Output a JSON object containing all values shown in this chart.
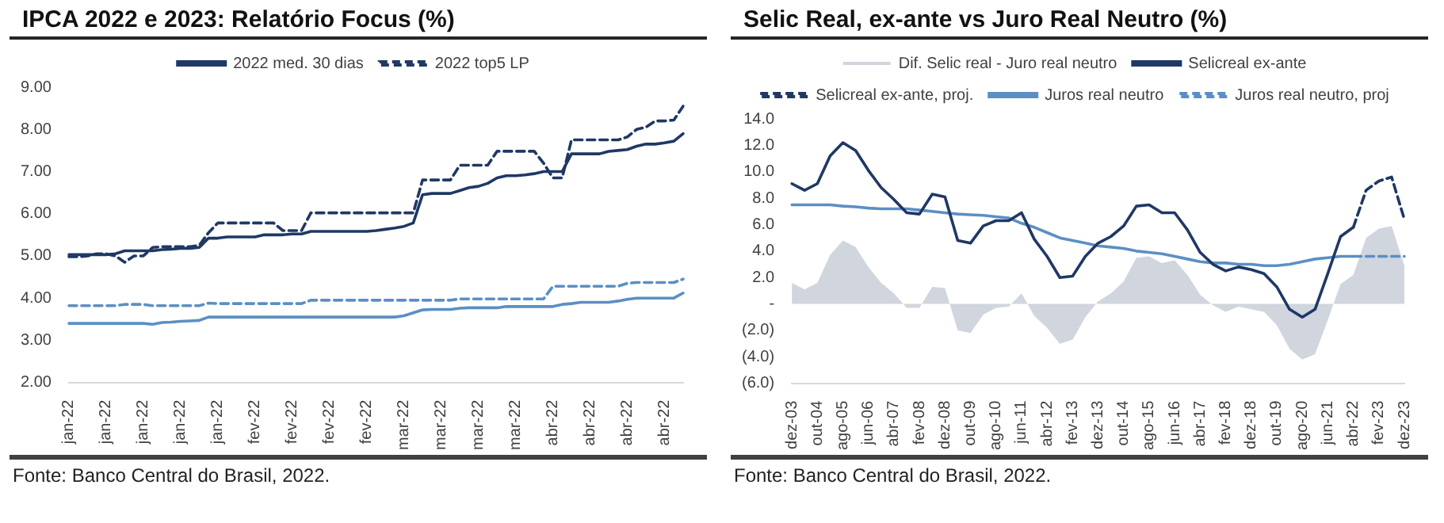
{
  "chart_data": [
    {
      "type": "line",
      "title": "IPCA 2022 e 2023: Relatório Focus (%)",
      "annotations": [
        "Fonte: Banco Central do Brasil, 2022."
      ],
      "categories": [
        "jan-22",
        null,
        null,
        null,
        "jan-22",
        null,
        null,
        null,
        "jan-22",
        null,
        null,
        null,
        "jan-22",
        null,
        null,
        null,
        "jan-22",
        null,
        null,
        null,
        "fev-22",
        null,
        null,
        null,
        "fev-22",
        null,
        null,
        null,
        "fev-22",
        null,
        null,
        null,
        "fev-22",
        null,
        null,
        null,
        "mar-22",
        null,
        null,
        null,
        "mar-22",
        null,
        null,
        null,
        "mar-22",
        null,
        null,
        null,
        "mar-22",
        null,
        null,
        null,
        "abr-22",
        null,
        null,
        null,
        "abr-22",
        null,
        null,
        null,
        "abr-22",
        null,
        null,
        null,
        "abr-22",
        null,
        null
      ],
      "series": [
        {
          "name": "2022 med. 30 dias",
          "color": "#1f3864",
          "line_style": "solid",
          "values": [
            5.03,
            5.03,
            5.03,
            5.03,
            5.03,
            5.05,
            5.12,
            5.12,
            5.12,
            5.12,
            5.15,
            5.16,
            5.18,
            5.18,
            5.2,
            5.42,
            5.42,
            5.45,
            5.45,
            5.45,
            5.45,
            5.5,
            5.5,
            5.5,
            5.52,
            5.52,
            5.58,
            5.58,
            5.58,
            5.58,
            5.58,
            5.58,
            5.58,
            5.6,
            5.63,
            5.66,
            5.7,
            5.78,
            6.45,
            6.48,
            6.48,
            6.48,
            6.55,
            6.62,
            6.65,
            6.72,
            6.85,
            6.9,
            6.9,
            6.92,
            6.95,
            7.0,
            7.0,
            7.0,
            7.42,
            7.42,
            7.42,
            7.42,
            7.48,
            7.5,
            7.52,
            7.6,
            7.65,
            7.65,
            7.68,
            7.72,
            7.9
          ]
        },
        {
          "name": "2022 top5 LP",
          "color": "#1f3864",
          "line_style": "dashed",
          "values": [
            4.98,
            4.98,
            5.0,
            5.05,
            5.05,
            5.0,
            4.85,
            5.0,
            5.0,
            5.2,
            5.22,
            5.22,
            5.22,
            5.22,
            5.25,
            5.55,
            5.78,
            5.78,
            5.78,
            5.78,
            5.78,
            5.78,
            5.78,
            5.6,
            5.6,
            5.6,
            6.02,
            6.02,
            6.02,
            6.02,
            6.02,
            6.02,
            6.02,
            6.02,
            6.02,
            6.02,
            6.02,
            6.02,
            6.8,
            6.8,
            6.8,
            6.8,
            7.15,
            7.15,
            7.15,
            7.15,
            7.48,
            7.48,
            7.48,
            7.48,
            7.48,
            7.2,
            6.85,
            6.85,
            7.75,
            7.75,
            7.75,
            7.75,
            7.75,
            7.75,
            7.82,
            8.0,
            8.05,
            8.2,
            8.2,
            8.22,
            8.55
          ]
        },
        {
          "color": "#5b8fc4",
          "line_style": "solid",
          "values": [
            3.4,
            3.4,
            3.4,
            3.4,
            3.4,
            3.4,
            3.4,
            3.4,
            3.4,
            3.38,
            3.42,
            3.43,
            3.45,
            3.46,
            3.47,
            3.55,
            3.55,
            3.55,
            3.55,
            3.55,
            3.55,
            3.55,
            3.55,
            3.55,
            3.55,
            3.55,
            3.55,
            3.55,
            3.55,
            3.55,
            3.55,
            3.55,
            3.55,
            3.55,
            3.55,
            3.55,
            3.58,
            3.65,
            3.72,
            3.73,
            3.73,
            3.73,
            3.76,
            3.77,
            3.77,
            3.77,
            3.77,
            3.8,
            3.8,
            3.8,
            3.8,
            3.8,
            3.8,
            3.85,
            3.87,
            3.9,
            3.9,
            3.9,
            3.9,
            3.93,
            3.97,
            4.0,
            4.0,
            4.0,
            4.0,
            4.0,
            4.12
          ]
        },
        {
          "color": "#5b8fc4",
          "line_style": "dashed",
          "values": [
            3.82,
            3.82,
            3.82,
            3.82,
            3.82,
            3.82,
            3.85,
            3.85,
            3.85,
            3.82,
            3.82,
            3.82,
            3.82,
            3.82,
            3.82,
            3.88,
            3.87,
            3.87,
            3.87,
            3.87,
            3.87,
            3.87,
            3.87,
            3.87,
            3.87,
            3.87,
            3.95,
            3.95,
            3.95,
            3.95,
            3.95,
            3.95,
            3.95,
            3.95,
            3.95,
            3.95,
            3.95,
            3.95,
            3.95,
            3.95,
            3.95,
            3.95,
            3.98,
            3.98,
            3.98,
            3.98,
            3.98,
            3.98,
            3.98,
            3.98,
            3.98,
            3.98,
            4.28,
            4.28,
            4.28,
            4.28,
            4.28,
            4.28,
            4.28,
            4.28,
            4.35,
            4.37,
            4.37,
            4.37,
            4.37,
            4.37,
            4.45
          ]
        }
      ],
      "ylim": [
        2,
        9
      ],
      "yticks": [
        {
          "value": 2,
          "label": "2.00"
        },
        {
          "value": 3,
          "label": "3.00"
        },
        {
          "value": 4,
          "label": "4.00"
        },
        {
          "value": 5,
          "label": "5.00"
        },
        {
          "value": 6,
          "label": "6.00"
        },
        {
          "value": 7,
          "label": "7.00"
        },
        {
          "value": 8,
          "label": "8.00"
        },
        {
          "value": 9,
          "label": "9.00"
        }
      ],
      "legend": "top",
      "marker": "none"
    },
    {
      "type": "line",
      "title": "Selic Real, ex-ante vs Juro Real Neutro (%)",
      "annotations": [
        "Fonte: Banco Central do Brasil, 2022."
      ],
      "categories": [
        "dez-03",
        null,
        "out-04",
        null,
        "ago-05",
        null,
        "jun-06",
        null,
        "abr-07",
        null,
        "fev-08",
        null,
        "dez-08",
        null,
        "out-09",
        null,
        "ago-10",
        null,
        "jun-11",
        null,
        "abr-12",
        null,
        "fev-13",
        null,
        "dez-13",
        null,
        "out-14",
        null,
        "ago-15",
        null,
        "jun-16",
        null,
        "abr-17",
        null,
        "fev-18",
        null,
        "dez-18",
        null,
        "out-19",
        null,
        "ago-20",
        null,
        "jun-21",
        null,
        "abr-22",
        null,
        "fev-23",
        null,
        "dez-23"
      ],
      "series": [
        {
          "name": "Dif. Selic real - Juro real neutro",
          "type": "area",
          "color": "#d0d5de",
          "values": [
            1.6,
            1.1,
            1.6,
            3.7,
            4.8,
            4.3,
            2.8,
            1.6,
            0.8,
            -0.3,
            -0.3,
            1.3,
            1.2,
            -2.0,
            -2.2,
            -0.8,
            -0.3,
            -0.2,
            0.8,
            -0.9,
            -1.8,
            -3.0,
            -2.7,
            -1.0,
            0.2,
            0.8,
            1.7,
            3.5,
            3.6,
            3.1,
            3.3,
            2.2,
            0.7,
            -0.1,
            -0.6,
            -0.2,
            -0.4,
            -0.6,
            -1.6,
            -3.4,
            -4.2,
            -3.8,
            -1.2,
            1.5,
            2.2,
            5.0,
            5.7,
            5.9,
            2.9
          ]
        },
        {
          "name": "Selicreal ex-ante",
          "color": "#1f3864",
          "line_style": "solid",
          "values": [
            9.1,
            8.6,
            9.1,
            11.2,
            12.2,
            11.6,
            10.1,
            8.8,
            7.9,
            6.9,
            6.8,
            8.3,
            8.1,
            4.8,
            4.6,
            5.9,
            6.3,
            6.3,
            6.9,
            4.9,
            3.6,
            2.0,
            2.1,
            3.6,
            4.6,
            5.1,
            5.9,
            7.4,
            7.5,
            6.9,
            6.9,
            5.6,
            3.9,
            3.0,
            2.5,
            2.8,
            2.6,
            2.3,
            1.3,
            -0.4,
            -1.0,
            -0.4,
            2.3,
            5.1,
            5.8,
            null,
            null,
            null,
            null
          ]
        },
        {
          "name": "Selicreal ex-ante, proj.",
          "color": "#1f3864",
          "line_style": "dashed",
          "values": [
            null,
            null,
            null,
            null,
            null,
            null,
            null,
            null,
            null,
            null,
            null,
            null,
            null,
            null,
            null,
            null,
            null,
            null,
            null,
            null,
            null,
            null,
            null,
            null,
            null,
            null,
            null,
            null,
            null,
            null,
            null,
            null,
            null,
            null,
            null,
            null,
            null,
            null,
            null,
            null,
            null,
            null,
            null,
            null,
            5.8,
            8.6,
            9.3,
            9.6,
            6.4
          ]
        },
        {
          "name": "Juros real neutro",
          "color": "#5b8fc4",
          "line_style": "solid",
          "values": [
            7.5,
            7.5,
            7.5,
            7.5,
            7.4,
            7.35,
            7.25,
            7.2,
            7.2,
            7.2,
            7.1,
            7.0,
            6.9,
            6.8,
            6.75,
            6.7,
            6.6,
            6.5,
            6.1,
            5.8,
            5.4,
            5.0,
            4.8,
            4.6,
            4.4,
            4.3,
            4.2,
            4.0,
            3.9,
            3.8,
            3.6,
            3.4,
            3.2,
            3.1,
            3.1,
            3.0,
            3.0,
            2.9,
            2.9,
            3.0,
            3.2,
            3.4,
            3.5,
            3.6,
            3.6,
            null,
            null,
            null,
            null
          ]
        },
        {
          "name": "Juros real neutro, proj",
          "color": "#5b8fc4",
          "line_style": "dashed",
          "values": [
            null,
            null,
            null,
            null,
            null,
            null,
            null,
            null,
            null,
            null,
            null,
            null,
            null,
            null,
            null,
            null,
            null,
            null,
            null,
            null,
            null,
            null,
            null,
            null,
            null,
            null,
            null,
            null,
            null,
            null,
            null,
            null,
            null,
            null,
            null,
            null,
            null,
            null,
            null,
            null,
            null,
            null,
            null,
            null,
            3.6,
            3.6,
            3.6,
            3.6,
            3.6
          ]
        }
      ],
      "ylim": [
        -6,
        14
      ],
      "yticks": [
        {
          "value": -6,
          "label": "(6.0)"
        },
        {
          "value": -4,
          "label": "(4.0)"
        },
        {
          "value": -2,
          "label": "(2.0)"
        },
        {
          "value": 0,
          "label": "-"
        },
        {
          "value": 2,
          "label": "2.0"
        },
        {
          "value": 4,
          "label": "4.0"
        },
        {
          "value": 6,
          "label": "6.0"
        },
        {
          "value": 8,
          "label": "8.0"
        },
        {
          "value": 10,
          "label": "10.0"
        },
        {
          "value": 12,
          "label": "12.0"
        },
        {
          "value": 14,
          "label": "14.0"
        }
      ],
      "legend": "top",
      "marker": "none"
    }
  ]
}
